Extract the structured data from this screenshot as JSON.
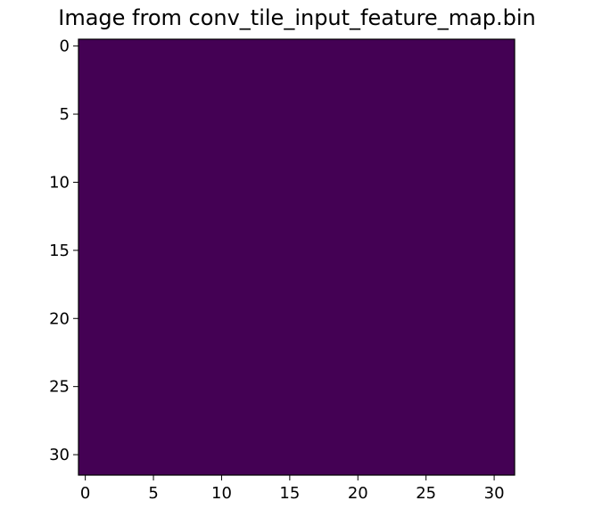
{
  "chart_data": {
    "type": "heatmap",
    "title": "Image from conv_tile_input_feature_map.bin",
    "xlabel": "",
    "ylabel": "",
    "rows": 32,
    "cols": 32,
    "xlim": [
      -0.5,
      31.5
    ],
    "ylim": [
      31.5,
      -0.5
    ],
    "x_ticks": [
      0,
      5,
      10,
      15,
      20,
      25,
      30
    ],
    "y_ticks": [
      0,
      5,
      10,
      15,
      20,
      25,
      30
    ],
    "uniform_value": 0,
    "cell_color": "#440154",
    "colormap": "viridis",
    "grid": false
  }
}
